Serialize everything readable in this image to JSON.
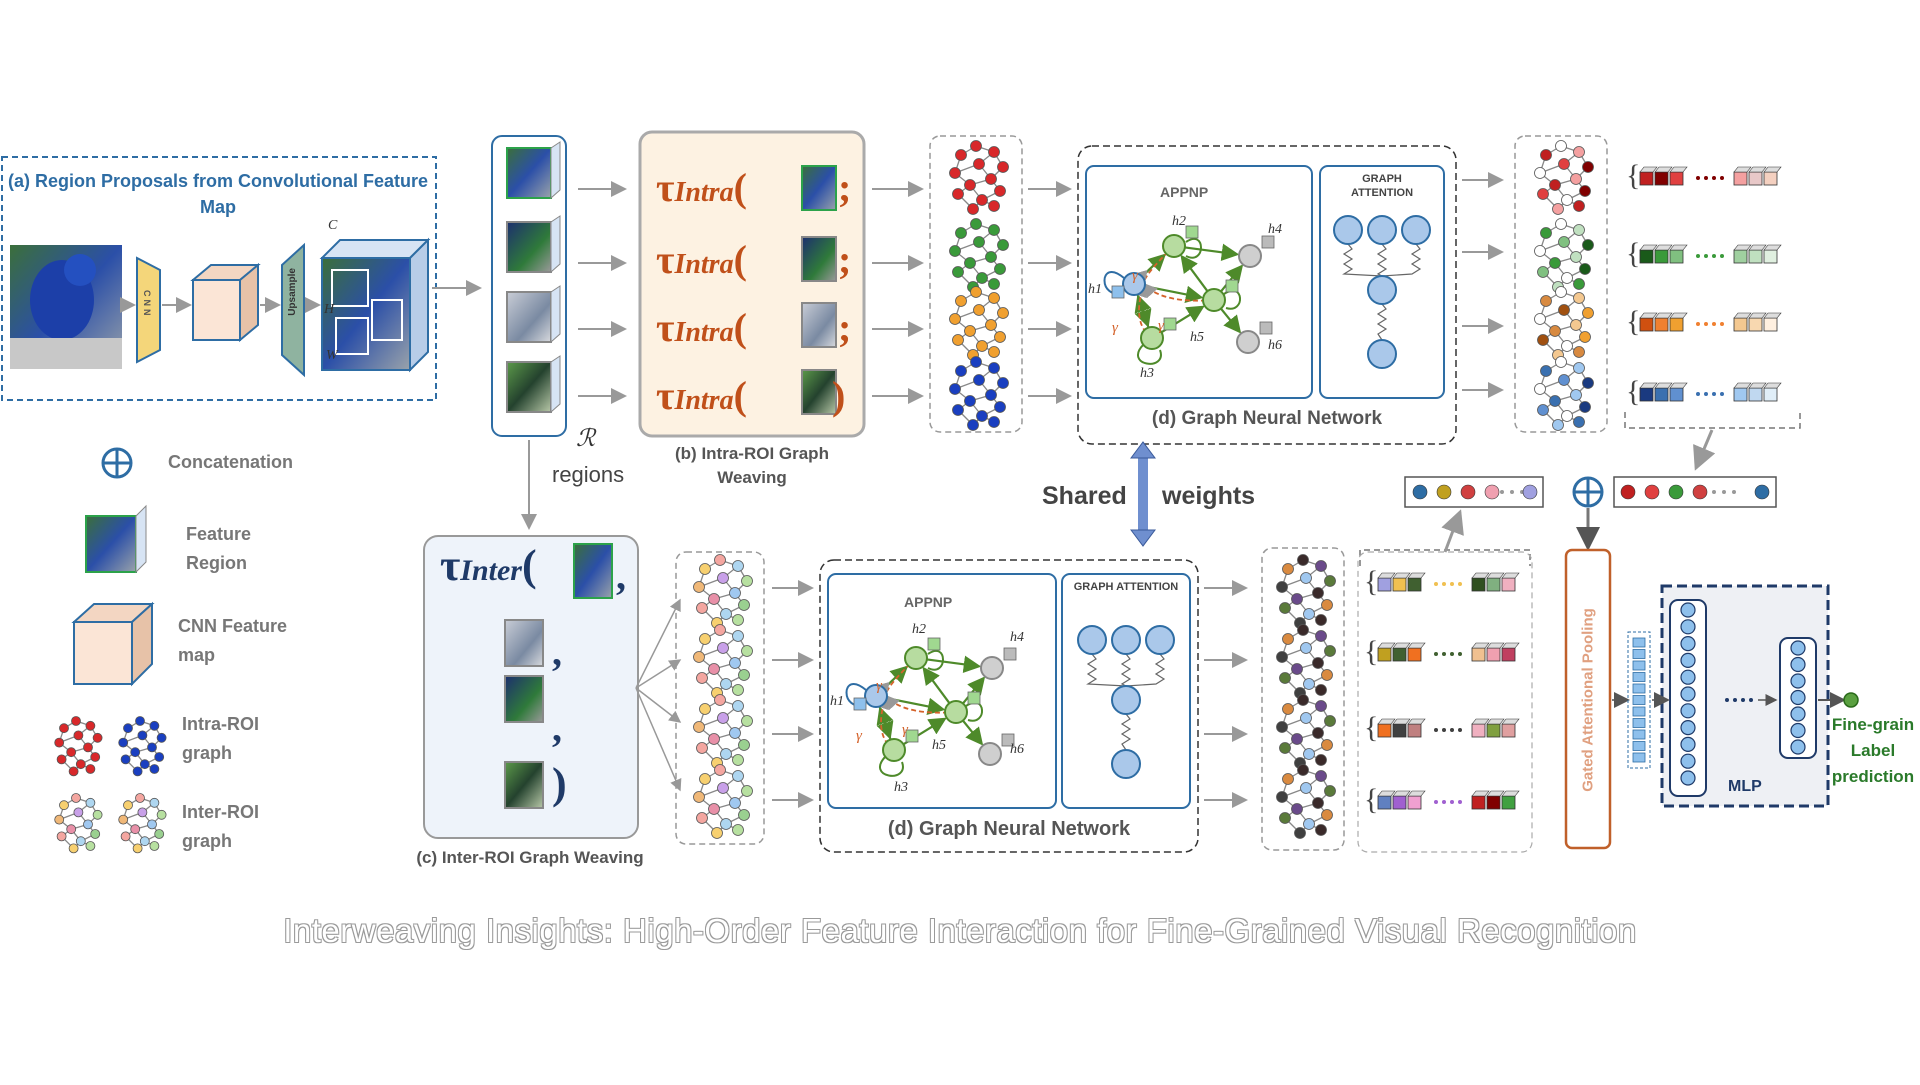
{
  "panel_a": {
    "title": "(a) Region Proposals from Convolutional Feature Map",
    "cnn_label": "CNN",
    "upsample_label": "Upsample",
    "dim_c": "C",
    "dim_h": "H",
    "dim_w": "W"
  },
  "regions": {
    "symbol": "ℛ",
    "label": "regions"
  },
  "panel_b": {
    "tau": "τ",
    "subscript": "Intra",
    "caption": "(b) Intra-ROI Graph Weaving",
    "sep": [
      ";",
      ";",
      ";",
      ""
    ]
  },
  "panel_c": {
    "tau": "τ",
    "subscript": "Inter",
    "caption": "(c) Inter-ROI Graph Weaving"
  },
  "gnn": {
    "appnp": "APPNP",
    "graph_attention": "GRAPH ATTENTION",
    "caption": "(d) Graph Neural Network",
    "h1": "h1",
    "h2": "h2",
    "h3": "h3",
    "h4": "h4",
    "h5": "h5",
    "h6": "h6",
    "gamma": "γ"
  },
  "shared": {
    "left": "Shared",
    "right": "weights"
  },
  "pooling": {
    "label": "Gated Attentional Pooling"
  },
  "mlp": {
    "label": "MLP"
  },
  "output": {
    "line1": "Fine-grain",
    "line2": "Label",
    "line3": "prediction"
  },
  "legend": {
    "concat": "Concatenation",
    "feature_region": "Feature Region",
    "cnn_map": "CNN Feature map",
    "intra": "Intra-ROI graph",
    "inter": "Inter-ROI graph"
  },
  "title": "Interweaving Insights: High-Order Feature Interaction for Fine-Grained Visual Recognition",
  "colors": {
    "accent_blue": "#2e6da4",
    "tau_orange": "#c0501a",
    "graph_green": "#5a9a35",
    "node_blue": "#aac8ea",
    "pooling_orange": "#c0602a",
    "mlp_navy": "#1f3a68"
  }
}
